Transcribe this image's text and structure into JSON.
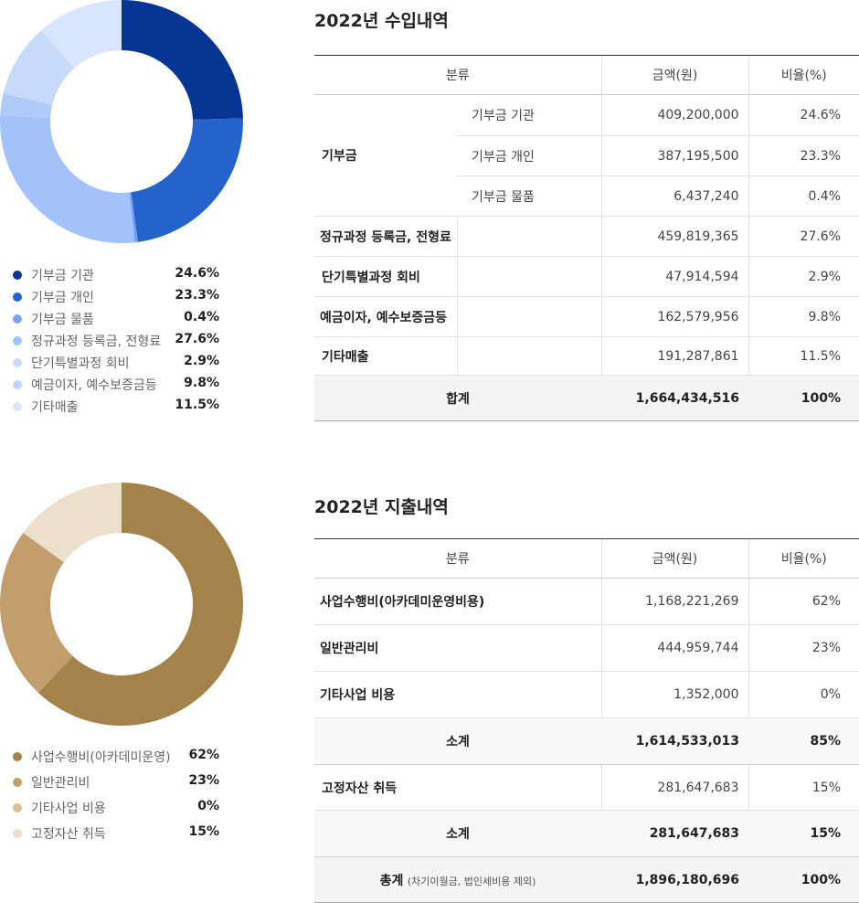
{
  "income": {
    "title": "2022년 수입내역",
    "headers": [
      "분류",
      "금액(원)",
      "비율(%)"
    ],
    "rows": [
      {
        "cat": "기부금",
        "sub": "기부금 기관",
        "amount": "409,200,000",
        "pct": "24.6%"
      },
      {
        "cat": "",
        "sub": "기부금 개인",
        "amount": "387,195,500",
        "pct": "23.3%"
      },
      {
        "cat": "",
        "sub": "기부금 물품",
        "amount": "6,437,240",
        "pct": "0.4%"
      },
      {
        "cat": "정규과정 등록금, 전형료",
        "sub": "",
        "amount": "459,819,365",
        "pct": "27.6%"
      },
      {
        "cat": "단기특별과정 회비",
        "sub": "",
        "amount": "47,914,594",
        "pct": "2.9%"
      },
      {
        "cat": "예금이자, 예수보증금등",
        "sub": "",
        "amount": "162,579,956",
        "pct": "9.8%"
      },
      {
        "cat": "기타매출",
        "sub": "",
        "amount": "191,287,861",
        "pct": "11.5%"
      }
    ],
    "total": {
      "label": "합계",
      "amount": "1,664,434,516",
      "pct": "100%"
    }
  },
  "expense": {
    "title": "2022년 지출내역",
    "headers": [
      "분류",
      "금액(원)",
      "비율(%)"
    ],
    "rows": [
      {
        "cat": "사업수행비(아카데미운영비용)",
        "amount": "1,168,221,269",
        "pct": "62%"
      },
      {
        "cat": "일반관리비",
        "amount": "444,959,744",
        "pct": "23%"
      },
      {
        "cat": "기타사업 비용",
        "amount": "1,352,000",
        "pct": "0%"
      }
    ],
    "subtotal1": {
      "label": "소계",
      "amount": "1,614,533,013",
      "pct": "85%"
    },
    "row4": {
      "cat": "고정자산 취득",
      "amount": "281,647,683",
      "pct": "15%"
    },
    "subtotal2": {
      "label": "소계",
      "amount": "281,647,683",
      "pct": "15%"
    },
    "grand": {
      "label": "총계",
      "note": "(차기이월금, 법인세비용 제외)",
      "amount": "1,896,180,696",
      "pct": "100%"
    }
  },
  "chart_data": [
    {
      "type": "pie",
      "labels": [
        "기부금 기관",
        "기부금 개인",
        "기부금 물품",
        "정규과정 등록금, 전형료",
        "단기특별과정 회비",
        "예금이자, 예수보증금등",
        "기타매출"
      ],
      "values": [
        24.6,
        23.3,
        0.4,
        27.6,
        2.9,
        9.8,
        11.5
      ],
      "value_labels": [
        "24.6%",
        "23.3%",
        "0.4%",
        "27.6%",
        "2.9%",
        "9.8%",
        "11.5%"
      ],
      "legend_colors": [
        "#0a3594",
        "#2563cc",
        "#7aa4ee",
        "#a3c2fb",
        "#c7daf9",
        "#c2d6fa",
        "#d8e5fc"
      ],
      "slice_colors": [
        "#063594",
        "#2563cc",
        "#6f9ef0",
        "#a3c2fb",
        "#b0cafa",
        "#c7daf9",
        "#d8e5fc"
      ],
      "donut": true,
      "legend_position": "bottom"
    },
    {
      "type": "pie",
      "labels": [
        "사업수행비(아카데미운영)",
        "일반관리비",
        "기타사업 비용",
        "고정자산 취득"
      ],
      "values": [
        62,
        23,
        0,
        15
      ],
      "value_labels": [
        "62%",
        "23%",
        "0%",
        "15%"
      ],
      "legend_colors": [
        "#a3834a",
        "#c19e6b",
        "#d9be97",
        "#ece0cd"
      ],
      "slice_colors": [
        "#a3834a",
        "#c19e6b",
        "#d9be97",
        "#ece0cd"
      ],
      "donut": true,
      "legend_position": "bottom"
    }
  ]
}
